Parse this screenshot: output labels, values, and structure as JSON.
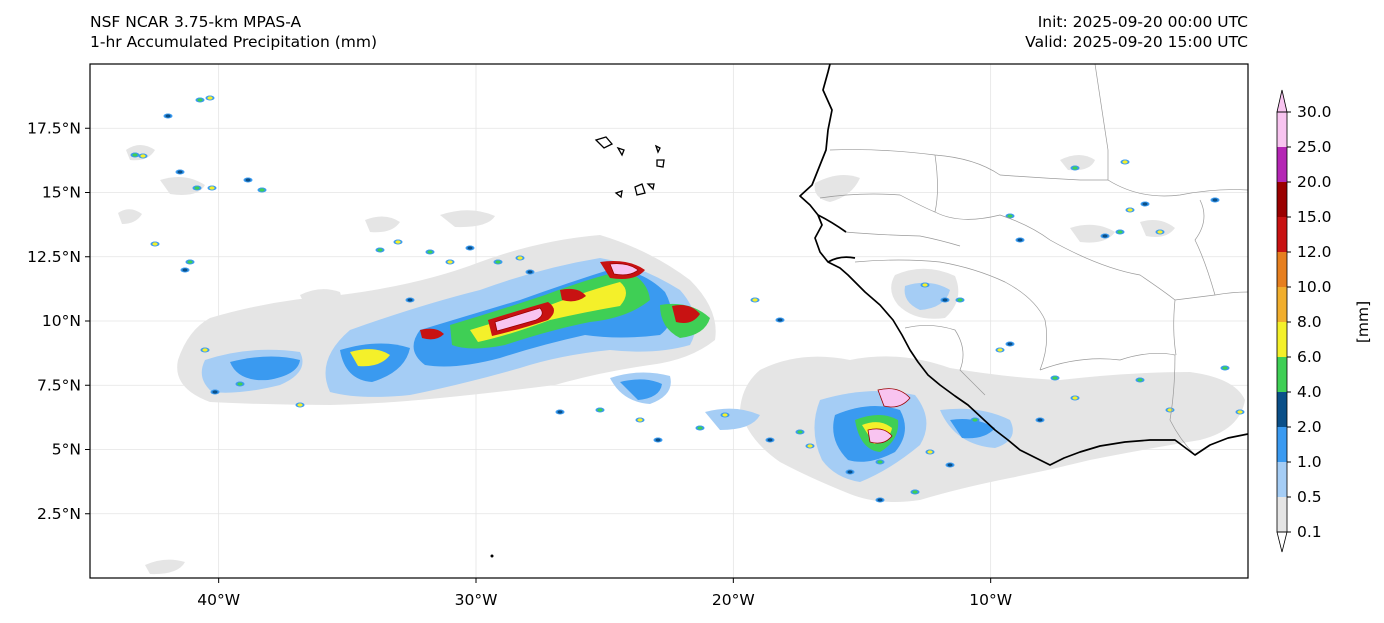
{
  "header": {
    "title_line1": "NSF NCAR 3.75-km MPAS-A",
    "title_line2": "1-hr Accumulated Precipitation (mm)",
    "init": "Init: 2025-09-20 00:00 UTC",
    "valid": "Valid: 2025-09-20 15:00 UTC"
  },
  "map": {
    "lon_range": [
      -45,
      0
    ],
    "lat_range": [
      0,
      20
    ],
    "grid": true,
    "lat_ticks": [
      {
        "value": 2.5,
        "label": "2.5°N"
      },
      {
        "value": 5,
        "label": "5°N"
      },
      {
        "value": 7.5,
        "label": "7.5°N"
      },
      {
        "value": 10,
        "label": "10°N"
      },
      {
        "value": 12.5,
        "label": "12.5°N"
      },
      {
        "value": 15,
        "label": "15°N"
      },
      {
        "value": 17.5,
        "label": "17.5°N"
      }
    ],
    "lon_ticks": [
      {
        "value": -40,
        "label": "40°W"
      },
      {
        "value": -30,
        "label": "30°W"
      },
      {
        "value": -20,
        "label": "20°W"
      },
      {
        "value": -10,
        "label": "10°W"
      }
    ]
  },
  "colorbar": {
    "label": "[mm]",
    "levels": [
      "0.1",
      "0.5",
      "1.0",
      "2.0",
      "4.0",
      "6.0",
      "8.0",
      "10.0",
      "12.0",
      "15.0",
      "20.0",
      "25.0",
      "30.0"
    ],
    "colors": [
      "#e5e5e5",
      "#a5cdf5",
      "#3a9af0",
      "#0a4f88",
      "#3fcf55",
      "#f4f02a",
      "#f1ae2d",
      "#e67f1f",
      "#c81212",
      "#9a0000",
      "#b426b4",
      "#f8c4f0"
    ]
  },
  "colors": {
    "coastline": "#000000",
    "borders": "#9a9a9a",
    "gridlines": "#e4e4e4"
  }
}
